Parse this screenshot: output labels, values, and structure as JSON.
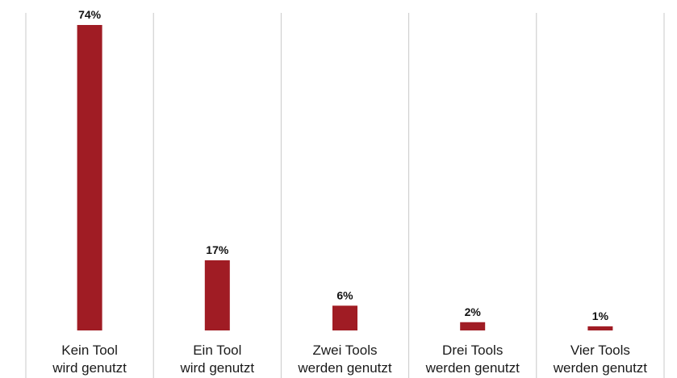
{
  "chart_data": {
    "type": "bar",
    "categories": [
      [
        "Kein Tool",
        "wird genutzt"
      ],
      [
        "Ein Tool",
        "wird genutzt"
      ],
      [
        "Zwei Tools",
        "werden genutzt"
      ],
      [
        "Drei Tools",
        "werden genutzt"
      ],
      [
        "Vier Tools",
        "werden genutzt"
      ]
    ],
    "values": [
      74,
      17,
      6,
      2,
      1
    ],
    "value_labels": [
      "74%",
      "17%",
      "6%",
      "2%",
      "1%"
    ],
    "ylim": [
      0,
      74
    ],
    "grid": "vertical separators between categories",
    "legend": "none",
    "bar_color": "#a01c24",
    "separator_color": "#c8c8c8"
  }
}
